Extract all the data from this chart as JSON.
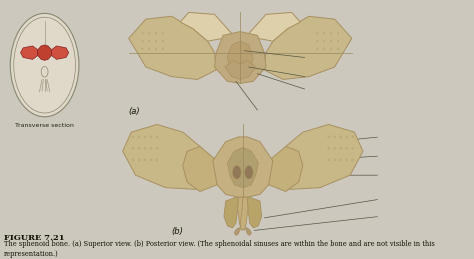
{
  "bg_color": "#ccc8be",
  "title_text": "FIGURE 7.21",
  "caption_text": "The sphenoid bone. (a) Superior view. (b) Posterior view. (The sphenoidal sinuses are within the bone and are not visible in this\nrepresentation.)",
  "label_a": "(a)",
  "label_b": "(b)",
  "label_transverse": "Transverse section",
  "title_fontsize": 6,
  "caption_fontsize": 4.8,
  "label_fontsize": 6,
  "bone_tan": "#c8b88a",
  "bone_light": "#ddd0aa",
  "bone_dark": "#a89060",
  "bone_shadow": "#b8a070",
  "bone_red": "#c04030",
  "bone_red2": "#d05040",
  "line_color": "#555540",
  "skull_bg": "#e0d8c8",
  "skull_edge": "#888870"
}
